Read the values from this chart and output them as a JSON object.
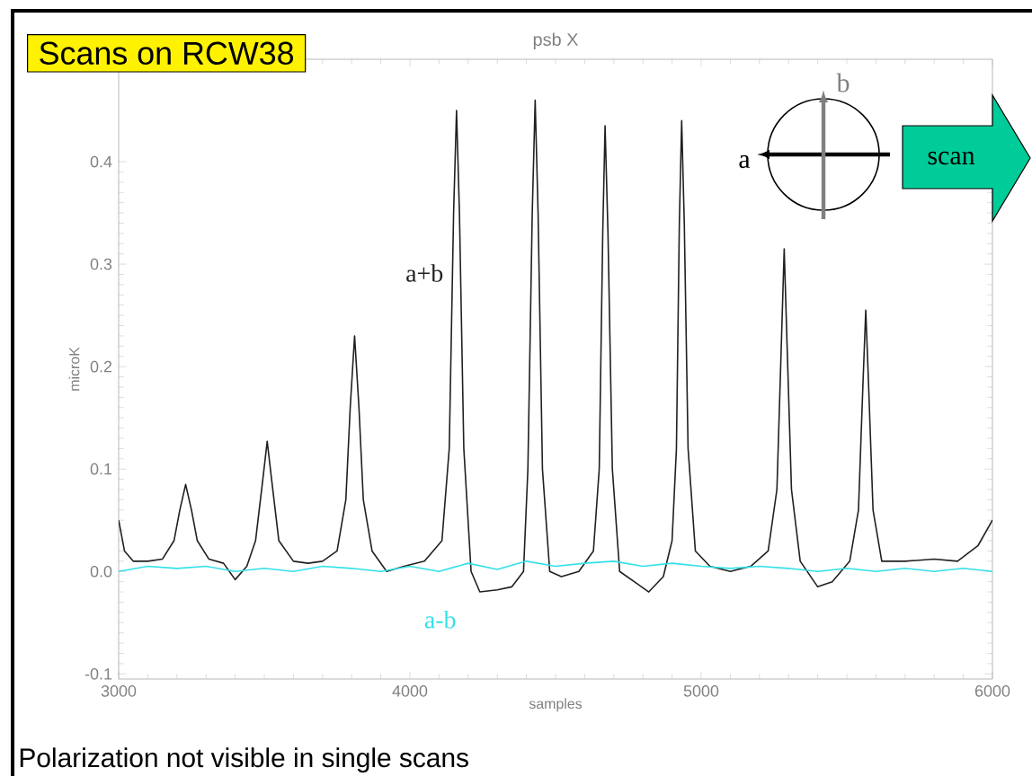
{
  "chart_data": {
    "type": "line",
    "title": "Scans on RCW38",
    "subtitle": "psb X",
    "xlabel": "samples",
    "ylabel": "microK",
    "annotations": [
      "Polarization not visible in single scans",
      "a",
      "b",
      "scan"
    ],
    "xlim": [
      3000,
      6000
    ],
    "ylim": [
      -0.105,
      0.5
    ],
    "xticks": [
      3000,
      4000,
      5000,
      6000
    ],
    "yticks": [
      -0.1,
      {
        "value": 0,
        "label": "0.0"
      },
      0.1,
      0.2,
      0.3,
      0.4
    ],
    "grid": false,
    "legend": false,
    "series": [
      {
        "name": "a+b",
        "color": "#202020",
        "x": [
          3000,
          3020,
          3050,
          3100,
          3150,
          3190,
          3210,
          3230,
          3250,
          3270,
          3310,
          3360,
          3400,
          3440,
          3470,
          3495,
          3510,
          3525,
          3550,
          3600,
          3650,
          3700,
          3750,
          3780,
          3795,
          3810,
          3825,
          3840,
          3870,
          3920,
          3980,
          4050,
          4110,
          4135,
          4150,
          4160,
          4170,
          4185,
          4210,
          4240,
          4300,
          4350,
          4390,
          4405,
          4420,
          4430,
          4440,
          4455,
          4480,
          4520,
          4580,
          4630,
          4650,
          4662,
          4670,
          4680,
          4695,
          4720,
          4780,
          4820,
          4870,
          4900,
          4915,
          4925,
          4933,
          4942,
          4955,
          4980,
          5030,
          5100,
          5170,
          5230,
          5260,
          5275,
          5285,
          5295,
          5310,
          5340,
          5400,
          5450,
          5510,
          5540,
          5555,
          5565,
          5575,
          5590,
          5620,
          5700,
          5800,
          5880,
          5950,
          6000
        ],
        "values": [
          0.05,
          0.02,
          0.01,
          0.01,
          0.012,
          0.03,
          0.06,
          0.085,
          0.06,
          0.03,
          0.012,
          0.008,
          -0.008,
          0.005,
          0.03,
          0.09,
          0.127,
          0.09,
          0.03,
          0.01,
          0.008,
          0.01,
          0.02,
          0.07,
          0.16,
          0.23,
          0.16,
          0.07,
          0.02,
          0.0,
          0.005,
          0.01,
          0.03,
          0.12,
          0.35,
          0.45,
          0.35,
          0.12,
          0.0,
          -0.02,
          -0.018,
          -0.015,
          0.0,
          0.1,
          0.35,
          0.46,
          0.35,
          0.1,
          0.0,
          -0.005,
          0.0,
          0.02,
          0.1,
          0.33,
          0.435,
          0.33,
          0.1,
          0.0,
          -0.012,
          -0.02,
          -0.005,
          0.03,
          0.12,
          0.34,
          0.44,
          0.34,
          0.12,
          0.02,
          0.005,
          0.0,
          0.005,
          0.02,
          0.08,
          0.22,
          0.315,
          0.22,
          0.08,
          0.01,
          -0.015,
          -0.01,
          0.01,
          0.06,
          0.18,
          0.255,
          0.18,
          0.06,
          0.01,
          0.01,
          0.012,
          0.01,
          0.025,
          0.05
        ]
      },
      {
        "name": "a-b",
        "color": "#33e0e8",
        "x": [
          3000,
          3100,
          3200,
          3300,
          3400,
          3500,
          3600,
          3700,
          3800,
          3900,
          4000,
          4100,
          4200,
          4300,
          4400,
          4500,
          4600,
          4700,
          4800,
          4900,
          5000,
          5100,
          5200,
          5300,
          5400,
          5500,
          5600,
          5700,
          5800,
          5900,
          6000
        ],
        "values": [
          0.0,
          0.005,
          0.003,
          0.005,
          0.0,
          0.003,
          0.0,
          0.005,
          0.003,
          0.0,
          0.005,
          0.0,
          0.008,
          0.002,
          0.01,
          0.005,
          0.008,
          0.01,
          0.005,
          0.008,
          0.005,
          0.003,
          0.005,
          0.003,
          0.0,
          0.003,
          0.0,
          0.003,
          0.0,
          0.003,
          0.0
        ]
      }
    ]
  }
}
